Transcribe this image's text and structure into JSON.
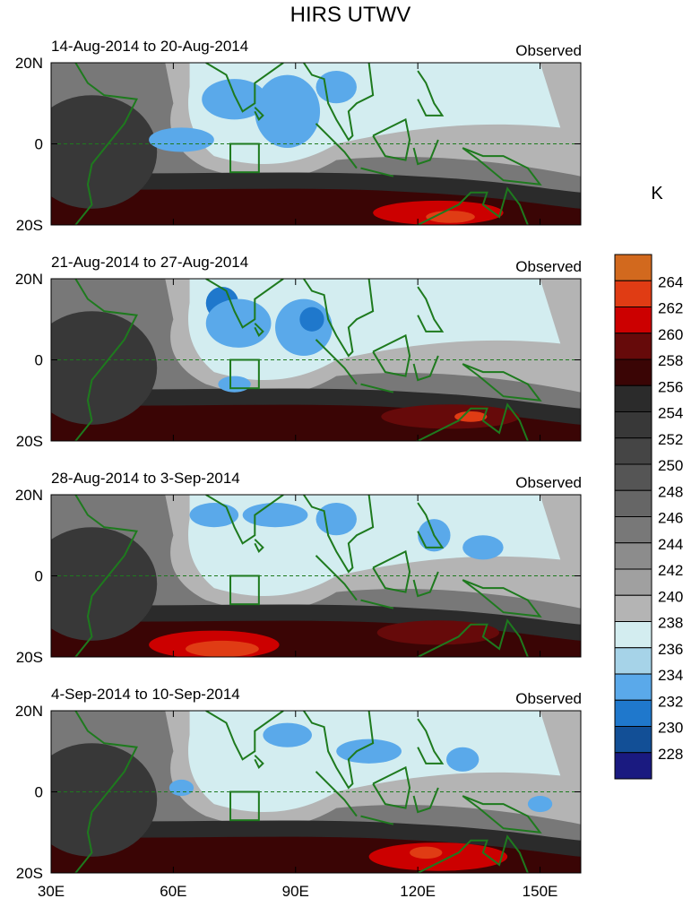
{
  "chart_data": {
    "type": "heatmap",
    "title": "HIRS UTWV",
    "units_label": "K",
    "colorbar": {
      "levels": [
        228,
        230,
        232,
        234,
        236,
        238,
        240,
        242,
        244,
        246,
        248,
        250,
        252,
        254,
        256,
        258,
        260,
        262,
        264
      ],
      "colors": [
        "#1a1a80",
        "#124f96",
        "#1f78cc",
        "#5aa9ea",
        "#a6d3e8",
        "#d3edf0",
        "#b4b4b4",
        "#a0a0a0",
        "#8c8c8c",
        "#787878",
        "#666666",
        "#555555",
        "#454545",
        "#383838",
        "#2b2b2b",
        "#3a0505",
        "#660a0a",
        "#cc0000",
        "#e03c14",
        "#d2691e"
      ]
    },
    "x_axis": {
      "range": [
        30,
        160
      ],
      "ticks": [
        30,
        60,
        90,
        120,
        150
      ],
      "tick_labels": [
        "30E",
        "60E",
        "90E",
        "120E",
        "150E"
      ]
    },
    "y_axis": {
      "range": [
        -20,
        20
      ],
      "ticks": [
        20,
        0,
        -20
      ],
      "tick_labels": [
        "20N",
        "0",
        "20S"
      ]
    },
    "box_region": {
      "lon": [
        74,
        81
      ],
      "lat": [
        -7,
        0
      ]
    },
    "panels": [
      {
        "period": "14-Aug-2014 to 20-Aug-2014",
        "label": "Observed",
        "features": [
          {
            "type": "moist",
            "lon": 62,
            "lat": 1,
            "rx": 8,
            "ry": 3,
            "level": 232
          },
          {
            "type": "moist",
            "lon": 75,
            "lat": 11,
            "rx": 8,
            "ry": 5,
            "level": 232
          },
          {
            "type": "moist",
            "lon": 88,
            "lat": 8,
            "rx": 8,
            "ry": 9,
            "level": 232
          },
          {
            "type": "moist",
            "lon": 100,
            "lat": 14,
            "rx": 5,
            "ry": 4,
            "level": 232
          },
          {
            "type": "dry",
            "lon": 125,
            "lat": -17,
            "rx": 16,
            "ry": 3,
            "level": 260
          },
          {
            "type": "dry",
            "lon": 128,
            "lat": -18,
            "rx": 6,
            "ry": 1.5,
            "level": 262
          }
        ]
      },
      {
        "period": "21-Aug-2014 to 27-Aug-2014",
        "label": "Observed",
        "features": [
          {
            "type": "moist",
            "lon": 72,
            "lat": 14,
            "rx": 4,
            "ry": 4,
            "level": 230
          },
          {
            "type": "moist",
            "lon": 76,
            "lat": 9,
            "rx": 8,
            "ry": 6,
            "level": 232
          },
          {
            "type": "moist",
            "lon": 92,
            "lat": 8,
            "rx": 7,
            "ry": 7,
            "level": 232
          },
          {
            "type": "moist",
            "lon": 94,
            "lat": 10,
            "rx": 3,
            "ry": 3,
            "level": 230
          },
          {
            "type": "moist",
            "lon": 75,
            "lat": -6,
            "rx": 4,
            "ry": 2,
            "level": 232
          },
          {
            "type": "dry",
            "lon": 128,
            "lat": -14,
            "rx": 17,
            "ry": 3,
            "level": 258
          },
          {
            "type": "dry",
            "lon": 133,
            "lat": -14,
            "rx": 4,
            "ry": 1.3,
            "level": 262
          }
        ]
      },
      {
        "period": "28-Aug-2014 to 3-Sep-2014",
        "label": "Observed",
        "features": [
          {
            "type": "moist",
            "lon": 70,
            "lat": 15,
            "rx": 6,
            "ry": 3,
            "level": 232
          },
          {
            "type": "moist",
            "lon": 85,
            "lat": 15,
            "rx": 8,
            "ry": 3,
            "level": 232
          },
          {
            "type": "moist",
            "lon": 100,
            "lat": 14,
            "rx": 5,
            "ry": 4,
            "level": 232
          },
          {
            "type": "moist",
            "lon": 124,
            "lat": 10,
            "rx": 4,
            "ry": 4,
            "level": 232
          },
          {
            "type": "moist",
            "lon": 136,
            "lat": 7,
            "rx": 5,
            "ry": 3,
            "level": 232
          },
          {
            "type": "dry",
            "lon": 70,
            "lat": -17,
            "rx": 16,
            "ry": 3.5,
            "level": 260
          },
          {
            "type": "dry",
            "lon": 72,
            "lat": -18,
            "rx": 9,
            "ry": 2,
            "level": 262
          },
          {
            "type": "dry",
            "lon": 125,
            "lat": -14,
            "rx": 15,
            "ry": 3,
            "level": 258
          }
        ]
      },
      {
        "period": "4-Sep-2014 to 10-Sep-2014",
        "label": "Observed",
        "features": [
          {
            "type": "moist",
            "lon": 62,
            "lat": 1,
            "rx": 3,
            "ry": 2,
            "level": 232
          },
          {
            "type": "moist",
            "lon": 88,
            "lat": 14,
            "rx": 6,
            "ry": 3,
            "level": 232
          },
          {
            "type": "moist",
            "lon": 108,
            "lat": 10,
            "rx": 8,
            "ry": 3,
            "level": 232
          },
          {
            "type": "moist",
            "lon": 131,
            "lat": 8,
            "rx": 4,
            "ry": 3,
            "level": 232
          },
          {
            "type": "moist",
            "lon": 150,
            "lat": -3,
            "rx": 3,
            "ry": 2,
            "level": 232
          },
          {
            "type": "dry",
            "lon": 125,
            "lat": -16,
            "rx": 17,
            "ry": 3.5,
            "level": 260
          },
          {
            "type": "dry",
            "lon": 122,
            "lat": -15,
            "rx": 4,
            "ry": 1.5,
            "level": 262
          }
        ]
      }
    ]
  }
}
